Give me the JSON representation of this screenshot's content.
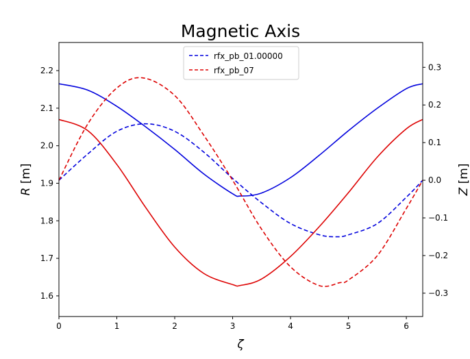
{
  "chart_data": {
    "type": "line",
    "title": "Magnetic Axis",
    "xlabel": "ζ",
    "ylabel_left": {
      "symbol": "R",
      "unit": " [m]"
    },
    "ylabel_right": {
      "symbol": "Z",
      "unit": " [m]"
    },
    "xlim": [
      0,
      6.283
    ],
    "ylim_left": [
      1.545,
      2.275
    ],
    "ylim_right": [
      -0.362,
      0.366
    ],
    "xticks": [
      0,
      1,
      2,
      3,
      4,
      5,
      6
    ],
    "yticks_left": [
      1.6,
      1.7,
      1.8,
      1.9,
      2.0,
      2.1,
      2.2
    ],
    "yticks_right": [
      -0.3,
      -0.2,
      -0.1,
      0.0,
      0.1,
      0.2,
      0.3
    ],
    "ytick_labels_left": [
      "1.6",
      "1.7",
      "1.8",
      "1.9",
      "2.0",
      "2.1",
      "2.2"
    ],
    "ytick_labels_right": [
      "−0.3",
      "−0.2",
      "−0.1",
      "0.0",
      "0.1",
      "0.2",
      "0.3"
    ],
    "grid": false,
    "legend_position": "upper-center",
    "legend_entries": [
      {
        "label": "rfx_pb_01.00000",
        "color": "#0000dd",
        "dash": "dashed"
      },
      {
        "label": "rfx_pb_07",
        "color": "#dd0000",
        "dash": "dashed"
      }
    ],
    "series": [
      {
        "legend_label": "rfx_pb_01.00000",
        "quantity": "R",
        "axis": "left",
        "color": "#0000dd",
        "dash": "solid",
        "x": [
          0,
          0.5,
          1.0,
          1.5,
          2.0,
          2.5,
          3.0,
          3.14,
          3.5,
          4.0,
          4.5,
          5.0,
          5.5,
          6.0,
          6.283
        ],
        "y": [
          2.165,
          2.148,
          2.105,
          2.05,
          1.99,
          1.925,
          1.872,
          1.866,
          1.874,
          1.915,
          1.975,
          2.04,
          2.1,
          2.152,
          2.165
        ]
      },
      {
        "legend_label": "rfx_pb_01.00000",
        "quantity": "Z",
        "axis": "right",
        "color": "#0000dd",
        "dash": "dashed",
        "x": [
          0,
          0.5,
          1.0,
          1.5,
          2.0,
          2.5,
          3.0,
          3.5,
          4.0,
          4.5,
          4.8,
          5.0,
          5.5,
          6.0,
          6.283
        ],
        "y": [
          0.0,
          0.07,
          0.13,
          0.15,
          0.13,
          0.075,
          0.005,
          -0.06,
          -0.115,
          -0.145,
          -0.15,
          -0.145,
          -0.115,
          -0.045,
          0.0
        ]
      },
      {
        "legend_label": "rfx_pb_07",
        "quantity": "R",
        "axis": "left",
        "color": "#dd0000",
        "dash": "solid",
        "x": [
          0,
          0.5,
          1.0,
          1.5,
          2.0,
          2.5,
          3.0,
          3.14,
          3.5,
          4.0,
          4.5,
          5.0,
          5.5,
          6.0,
          6.283
        ],
        "y": [
          2.07,
          2.04,
          1.95,
          1.835,
          1.73,
          1.66,
          1.63,
          1.628,
          1.645,
          1.705,
          1.785,
          1.875,
          1.97,
          2.045,
          2.07
        ]
      },
      {
        "legend_label": "rfx_pb_07",
        "quantity": "Z",
        "axis": "right",
        "color": "#dd0000",
        "dash": "dashed",
        "x": [
          0,
          0.5,
          1.0,
          1.45,
          2.0,
          2.5,
          3.0,
          3.5,
          4.0,
          4.5,
          4.85,
          5.0,
          5.5,
          6.0,
          6.283
        ],
        "y": [
          0.0,
          0.15,
          0.245,
          0.272,
          0.225,
          0.12,
          0.0,
          -0.13,
          -0.23,
          -0.28,
          -0.272,
          -0.265,
          -0.2,
          -0.075,
          0.0
        ]
      }
    ]
  }
}
